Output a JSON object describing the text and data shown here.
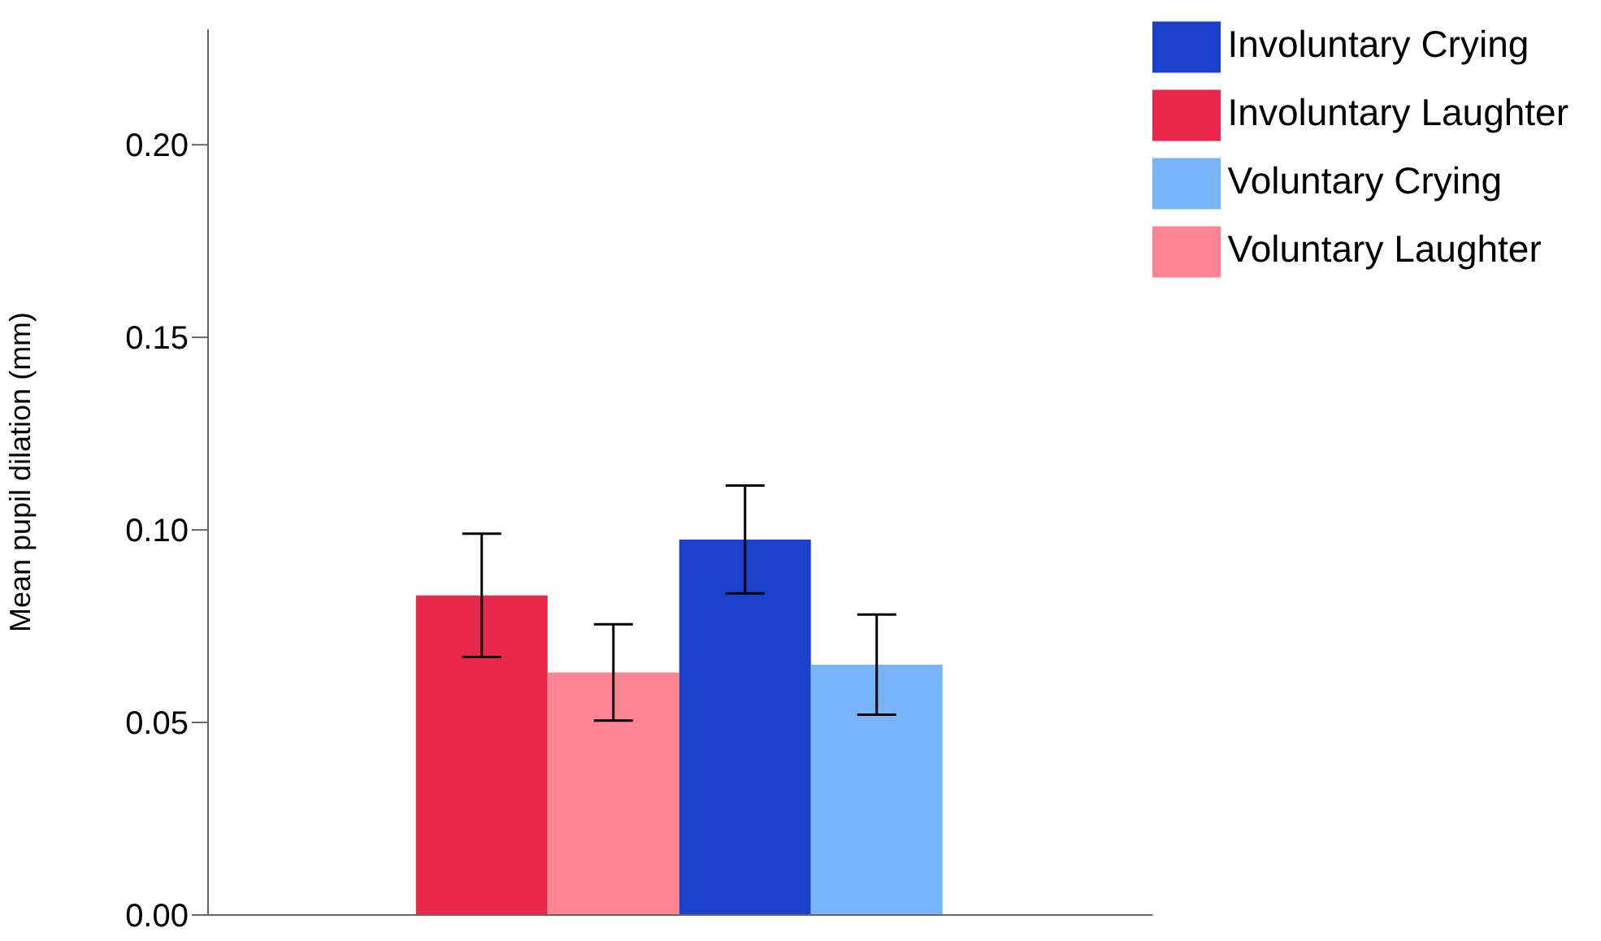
{
  "chart_data": {
    "type": "bar",
    "ylabel": "Mean pupil dilation (mm)",
    "categories": [
      null
    ],
    "series": [
      {
        "name": "Involuntary Laughter",
        "color": "#e8274a",
        "values": [
          0.083
        ],
        "errors": [
          0.016
        ]
      },
      {
        "name": "Voluntary Laughter",
        "color": "#fd8592",
        "values": [
          0.063
        ],
        "errors": [
          0.0125
        ]
      },
      {
        "name": "Involuntary Crying",
        "color": "#1a40cc",
        "values": [
          0.0975
        ],
        "errors": [
          0.014
        ]
      },
      {
        "name": "Voluntary Crying",
        "color": "#78b4fa",
        "values": [
          0.065
        ],
        "errors": [
          0.013
        ]
      }
    ],
    "ylim": [
      0,
      0.23
    ],
    "yticks": [
      {
        "value": 0,
        "label": "0.00"
      },
      {
        "value": 0.05,
        "label": "0.05"
      },
      {
        "value": 0.1,
        "label": "0.10"
      },
      {
        "value": 0.15,
        "label": "0.15"
      },
      {
        "value": 0.2,
        "label": "0.20"
      }
    ],
    "grid": false,
    "legend": "top right"
  }
}
